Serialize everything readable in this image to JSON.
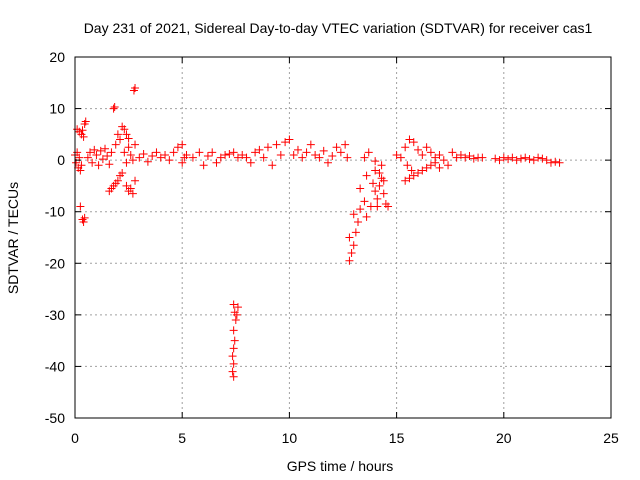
{
  "chart_data": {
    "type": "scatter",
    "title": "Day 231 of 2021, Sidereal Day-to-day VTEC variation (SDTVAR) for receiver cas1",
    "xlabel": "GPS time / hours",
    "ylabel": "SDTVAR / TECUs",
    "xlim": [
      0,
      25
    ],
    "ylim": [
      -50,
      20
    ],
    "xticks": [
      0,
      5,
      10,
      15,
      20,
      25
    ],
    "yticks": [
      -50,
      -40,
      -30,
      -20,
      -10,
      0,
      10,
      20
    ],
    "grid": true,
    "marker": "+",
    "colors": {
      "series": "#ff0000",
      "grid": "#a0a0a0",
      "axis": "#000000"
    },
    "series": [
      {
        "name": "SDTVAR",
        "points": [
          [
            0.0,
            1.0
          ],
          [
            0.05,
            -0.5
          ],
          [
            0.1,
            1.5
          ],
          [
            0.15,
            -1.5
          ],
          [
            0.2,
            0.5
          ],
          [
            0.25,
            -2.0
          ],
          [
            0.3,
            -1.0
          ],
          [
            0.1,
            6.0
          ],
          [
            0.2,
            5.5
          ],
          [
            0.3,
            5.0
          ],
          [
            0.4,
            4.5
          ],
          [
            0.45,
            7.0
          ],
          [
            0.5,
            7.5
          ],
          [
            0.35,
            5.8
          ],
          [
            0.25,
            -9.0
          ],
          [
            0.35,
            -11.5
          ],
          [
            0.4,
            -12.0
          ],
          [
            0.45,
            -11.2
          ],
          [
            0.6,
            0.5
          ],
          [
            0.7,
            1.5
          ],
          [
            0.8,
            -0.5
          ],
          [
            0.9,
            2.0
          ],
          [
            1.0,
            1.0
          ],
          [
            1.1,
            -1.0
          ],
          [
            1.2,
            1.8
          ],
          [
            1.3,
            0.2
          ],
          [
            1.4,
            2.2
          ],
          [
            1.5,
            0.8
          ],
          [
            1.6,
            -0.8
          ],
          [
            1.7,
            1.5
          ],
          [
            1.6,
            -6.0
          ],
          [
            1.7,
            -5.5
          ],
          [
            1.8,
            -5.0
          ],
          [
            1.9,
            -4.5
          ],
          [
            2.0,
            -4.0
          ],
          [
            2.1,
            -3.0
          ],
          [
            2.2,
            -2.5
          ],
          [
            1.8,
            10.0
          ],
          [
            1.85,
            10.3
          ],
          [
            1.9,
            3.0
          ],
          [
            2.0,
            5.0
          ],
          [
            2.1,
            4.0
          ],
          [
            2.2,
            6.5
          ],
          [
            2.3,
            6.0
          ],
          [
            2.4,
            5.0
          ],
          [
            2.5,
            4.2
          ],
          [
            2.3,
            1.5
          ],
          [
            2.4,
            -0.5
          ],
          [
            2.5,
            2.5
          ],
          [
            2.6,
            1.0
          ],
          [
            2.7,
            0.0
          ],
          [
            2.8,
            3.0
          ],
          [
            2.4,
            -5.0
          ],
          [
            2.5,
            -6.0
          ],
          [
            2.6,
            -5.5
          ],
          [
            2.7,
            -6.5
          ],
          [
            2.8,
            -4.0
          ],
          [
            2.75,
            13.5
          ],
          [
            2.8,
            14.0
          ],
          [
            3.0,
            0.5
          ],
          [
            3.2,
            1.2
          ],
          [
            3.4,
            -0.3
          ],
          [
            3.6,
            0.8
          ],
          [
            3.8,
            1.5
          ],
          [
            4.0,
            0.5
          ],
          [
            4.2,
            1.0
          ],
          [
            4.4,
            0.0
          ],
          [
            4.6,
            1.5
          ],
          [
            4.8,
            2.5
          ],
          [
            5.0,
            3.0
          ],
          [
            5.0,
            -0.5
          ],
          [
            5.1,
            0.5
          ],
          [
            5.2,
            1.0
          ],
          [
            5.5,
            0.5
          ],
          [
            5.8,
            1.5
          ],
          [
            6.0,
            -1.0
          ],
          [
            6.2,
            0.8
          ],
          [
            6.4,
            1.5
          ],
          [
            6.6,
            -0.5
          ],
          [
            6.8,
            0.5
          ],
          [
            7.0,
            1.0
          ],
          [
            7.2,
            1.2
          ],
          [
            7.4,
            1.5
          ],
          [
            7.6,
            0.5
          ],
          [
            7.8,
            1.0
          ],
          [
            8.0,
            0.5
          ],
          [
            8.2,
            -0.5
          ],
          [
            8.4,
            1.5
          ],
          [
            8.6,
            2.0
          ],
          [
            8.8,
            0.5
          ],
          [
            9.0,
            2.5
          ],
          [
            9.2,
            -1.0
          ],
          [
            9.4,
            3.0
          ],
          [
            9.6,
            1.0
          ],
          [
            9.8,
            3.5
          ],
          [
            10.0,
            4.0
          ],
          [
            10.2,
            1.0
          ],
          [
            10.4,
            2.0
          ],
          [
            10.6,
            0.5
          ],
          [
            10.8,
            1.5
          ],
          [
            11.0,
            3.0
          ],
          [
            11.2,
            1.0
          ],
          [
            11.4,
            0.5
          ],
          [
            11.6,
            1.8
          ],
          [
            11.8,
            -0.5
          ],
          [
            12.0,
            0.8
          ],
          [
            12.2,
            2.5
          ],
          [
            12.4,
            1.5
          ],
          [
            12.6,
            3.0
          ],
          [
            12.7,
            0.5
          ],
          [
            7.4,
            -28.0
          ],
          [
            7.45,
            -29.5
          ],
          [
            7.5,
            -31.0
          ],
          [
            7.4,
            -33.0
          ],
          [
            7.45,
            -35.0
          ],
          [
            7.4,
            -36.5
          ],
          [
            7.35,
            -38.0
          ],
          [
            7.4,
            -39.5
          ],
          [
            7.35,
            -41.0
          ],
          [
            7.4,
            -42.0
          ],
          [
            7.6,
            -28.5
          ],
          [
            7.55,
            -30.0
          ],
          [
            12.8,
            -19.5
          ],
          [
            12.9,
            -18.0
          ],
          [
            13.0,
            -16.5
          ],
          [
            12.8,
            -15.0
          ],
          [
            13.1,
            -14.0
          ],
          [
            13.2,
            -12.0
          ],
          [
            13.0,
            -10.5
          ],
          [
            13.3,
            -9.5
          ],
          [
            13.5,
            -8.0
          ],
          [
            13.6,
            -11.0
          ],
          [
            13.8,
            -9.0
          ],
          [
            14.0,
            -6.0
          ],
          [
            14.1,
            -7.5
          ],
          [
            14.2,
            -5.0
          ],
          [
            14.3,
            -3.5
          ],
          [
            14.4,
            -4.0
          ],
          [
            14.5,
            -8.5
          ],
          [
            14.6,
            -9.0
          ],
          [
            13.3,
            -5.5
          ],
          [
            13.6,
            -3.0
          ],
          [
            14.0,
            -2.0
          ],
          [
            14.3,
            -1.0
          ],
          [
            13.7,
            1.5
          ],
          [
            13.5,
            0.5
          ],
          [
            14.0,
            -0.2
          ],
          [
            14.2,
            -2.5
          ],
          [
            13.9,
            -4.5
          ],
          [
            14.1,
            -9.0
          ],
          [
            14.4,
            -6.5
          ],
          [
            15.0,
            1.0
          ],
          [
            15.2,
            0.5
          ],
          [
            15.4,
            2.5
          ],
          [
            15.6,
            4.0
          ],
          [
            15.8,
            3.5
          ],
          [
            16.0,
            2.0
          ],
          [
            16.2,
            1.0
          ],
          [
            16.4,
            2.5
          ],
          [
            16.6,
            1.5
          ],
          [
            16.8,
            0.5
          ],
          [
            17.0,
            1.0
          ],
          [
            17.2,
            0.0
          ],
          [
            17.4,
            -1.0
          ],
          [
            15.4,
            -4.0
          ],
          [
            15.6,
            -3.5
          ],
          [
            15.8,
            -3.0
          ],
          [
            16.0,
            -2.5
          ],
          [
            16.2,
            -2.0
          ],
          [
            16.4,
            -1.5
          ],
          [
            16.6,
            -1.0
          ],
          [
            16.8,
            -0.5
          ],
          [
            17.0,
            -1.5
          ],
          [
            15.5,
            -1.0
          ],
          [
            15.7,
            -2.0
          ],
          [
            17.6,
            1.5
          ],
          [
            17.8,
            0.5
          ],
          [
            18.0,
            1.0
          ],
          [
            18.2,
            0.5
          ],
          [
            18.4,
            0.8
          ],
          [
            18.6,
            0.3
          ],
          [
            18.8,
            0.5
          ],
          [
            19.0,
            0.5
          ],
          [
            19.6,
            0.3
          ],
          [
            19.8,
            0.0
          ],
          [
            20.0,
            0.5
          ],
          [
            20.2,
            0.2
          ],
          [
            20.4,
            0.5
          ],
          [
            20.6,
            0.0
          ],
          [
            20.8,
            0.3
          ],
          [
            21.0,
            0.5
          ],
          [
            21.2,
            0.2
          ],
          [
            21.4,
            0.0
          ],
          [
            21.6,
            0.5
          ],
          [
            21.8,
            0.3
          ],
          [
            22.0,
            0.0
          ],
          [
            22.2,
            -0.5
          ],
          [
            22.4,
            -0.3
          ],
          [
            22.6,
            -0.5
          ]
        ]
      }
    ]
  }
}
